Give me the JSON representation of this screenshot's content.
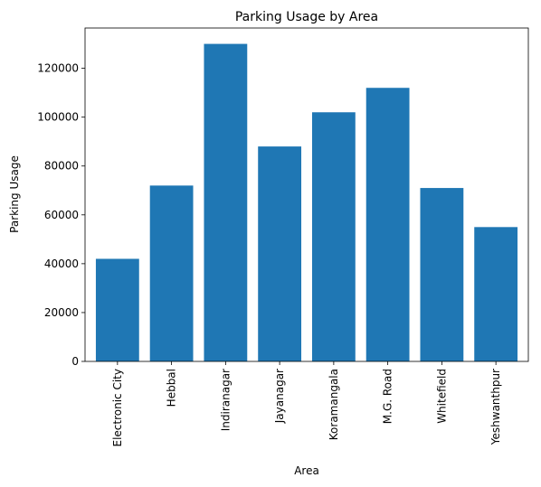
{
  "chart_data": {
    "type": "bar",
    "title": "Parking Usage by Area",
    "xlabel": "Area",
    "ylabel": "Parking Usage",
    "categories": [
      "Electronic City",
      "Hebbal",
      "Indiranagar",
      "Jayanagar",
      "Koramangala",
      "M.G. Road",
      "Whitefield",
      "Yeshwanthpur"
    ],
    "values": [
      42000,
      72000,
      130000,
      88000,
      102000,
      112000,
      71000,
      55000
    ],
    "ylim": [
      0,
      136500
    ],
    "yticks": [
      0,
      20000,
      40000,
      60000,
      80000,
      100000,
      120000
    ],
    "ytick_labels": [
      "0",
      "20000",
      "40000",
      "60000",
      "80000",
      "100000",
      "120000"
    ],
    "grid": false,
    "bar_color": "#1f77b4"
  }
}
